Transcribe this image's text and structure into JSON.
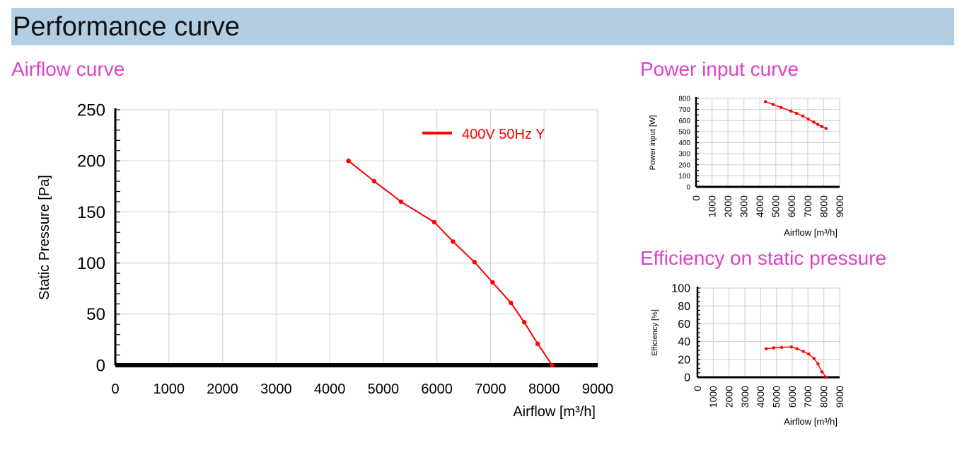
{
  "header": {
    "title": "Performance curve"
  },
  "sections": {
    "airflow": "Airflow curve",
    "power": "Power input curve",
    "efficiency": "Efficiency on static pressure"
  },
  "colors": {
    "banner": "#b3cde3",
    "section_title": "#e040c8",
    "curve": "#ff0000"
  },
  "chart_data": [
    {
      "type": "line",
      "xlabel": "Airflow [m³/h]",
      "ylabel": "Static Pressure [Pa]",
      "xlim": [
        0,
        9000
      ],
      "ylim": [
        0,
        250
      ],
      "x_ticks": [
        0,
        1000,
        2000,
        3000,
        4000,
        5000,
        6000,
        7000,
        8000,
        9000
      ],
      "y_ticks": [
        0,
        50,
        100,
        150,
        200,
        250
      ],
      "grid": true,
      "legend_position": "top-right",
      "series": [
        {
          "name": "400V 50Hz Y",
          "color": "#ff0000",
          "x": [
            4350,
            4830,
            5330,
            5950,
            6300,
            6700,
            7040,
            7380,
            7630,
            7880,
            8150
          ],
          "y": [
            200,
            180,
            160,
            140,
            121,
            101,
            81,
            61,
            42,
            21,
            0
          ]
        }
      ]
    },
    {
      "type": "line",
      "xlabel": "Airflow [m³/h]",
      "ylabel": "Power input [W]",
      "xlim": [
        0,
        9000
      ],
      "ylim": [
        0,
        800
      ],
      "x_ticks": [
        0,
        1000,
        2000,
        3000,
        4000,
        5000,
        6000,
        7000,
        8000,
        9000
      ],
      "y_ticks": [
        0,
        100,
        200,
        300,
        400,
        500,
        600,
        700,
        800
      ],
      "grid": true,
      "series": [
        {
          "color": "#ff0000",
          "x": [
            4350,
            4830,
            5330,
            5950,
            6300,
            6700,
            7040,
            7380,
            7630,
            7880,
            8150
          ],
          "y": [
            770,
            745,
            718,
            685,
            665,
            640,
            612,
            585,
            565,
            545,
            528
          ]
        }
      ]
    },
    {
      "type": "line",
      "xlabel": "Airflow [m³/h]",
      "ylabel": "Efficiency [%]",
      "xlim": [
        0,
        9000
      ],
      "ylim": [
        0,
        100
      ],
      "x_ticks": [
        0,
        1000,
        2000,
        3000,
        4000,
        5000,
        6000,
        7000,
        8000,
        9000
      ],
      "y_ticks": [
        0,
        20,
        40,
        60,
        80,
        100
      ],
      "grid": true,
      "series": [
        {
          "color": "#ff0000",
          "x": [
            4350,
            4830,
            5330,
            5950,
            6300,
            6700,
            7040,
            7380,
            7630,
            7880,
            8150
          ],
          "y": [
            32,
            33,
            33.5,
            34,
            32,
            29,
            26,
            21,
            15,
            6,
            0
          ]
        }
      ]
    }
  ]
}
